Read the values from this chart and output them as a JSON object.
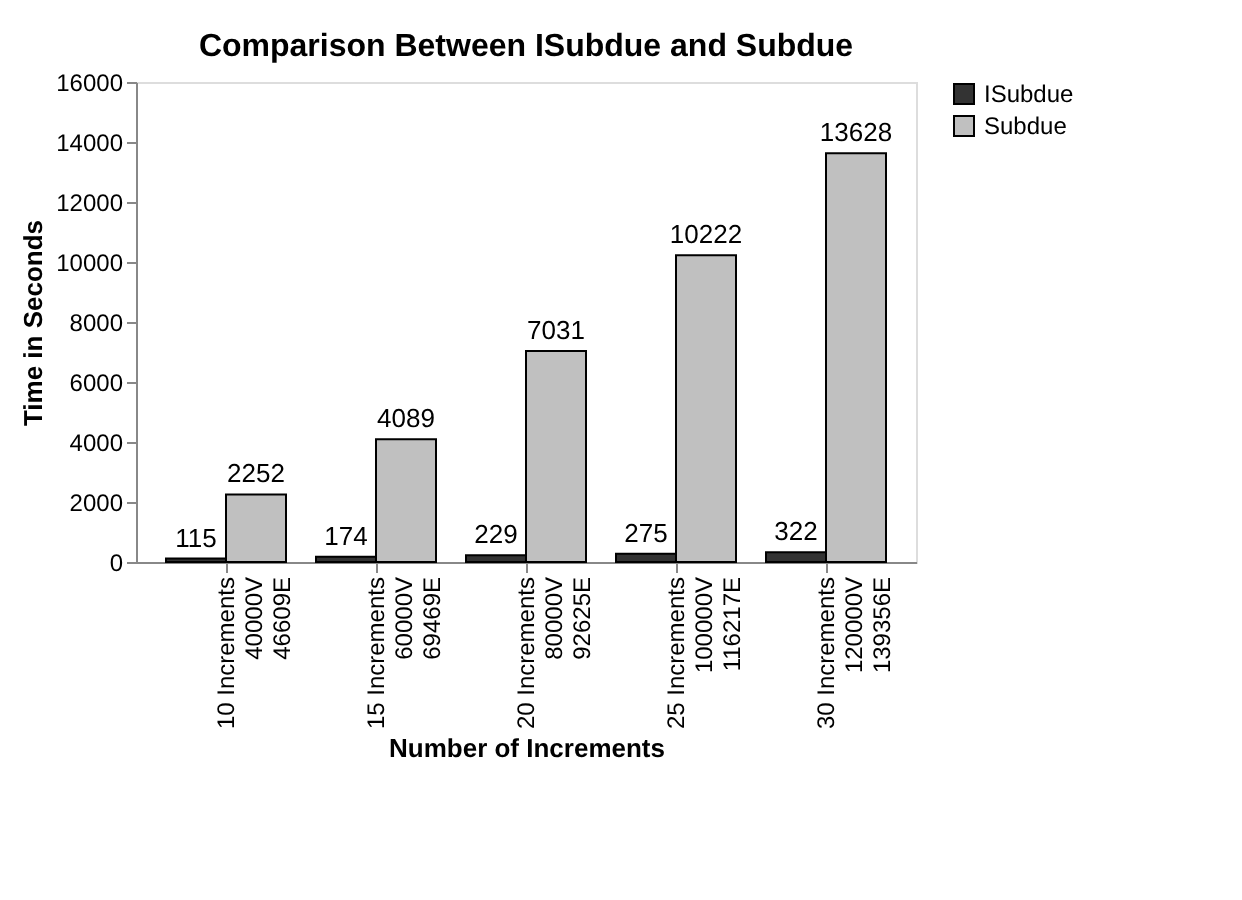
{
  "chart_data": {
    "type": "bar",
    "title": "Comparison Between ISubdue and Subdue",
    "xlabel": "Number of Increments",
    "ylabel": "Time in Seconds",
    "categories": [
      "10 Increments\n40000V\n46609E",
      "15 Increments\n60000V\n69469E",
      "20 Increments\n80000V\n92625E",
      "25 Increments\n100000V\n116217E",
      "30 Increments\n120000V\n139356E"
    ],
    "series": [
      {
        "name": "ISubdue",
        "color": "#333333",
        "values": [
          115,
          174,
          229,
          275,
          322
        ]
      },
      {
        "name": "Subdue",
        "color": "#c0c0c0",
        "values": [
          2252,
          4089,
          7031,
          10222,
          13628
        ]
      }
    ],
    "ylim": [
      0,
      16000
    ],
    "yticks": [
      0,
      2000,
      4000,
      6000,
      8000,
      10000,
      12000,
      14000,
      16000
    ],
    "data_labels": true,
    "grid": false,
    "legend": "right"
  }
}
